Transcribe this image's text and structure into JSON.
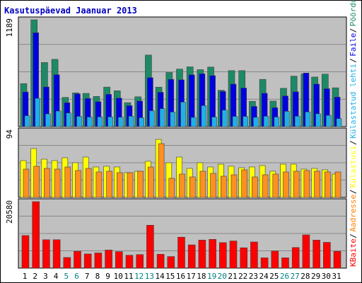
{
  "chart_data": {
    "type": "bar",
    "title": "Kasutuspäevad Jaanuar 2013",
    "categories": [
      "1",
      "2",
      "3",
      "4",
      "5",
      "6",
      "7",
      "8",
      "9",
      "10",
      "11",
      "12",
      "13",
      "14",
      "15",
      "16",
      "17",
      "18",
      "19",
      "20",
      "21",
      "22",
      "23",
      "24",
      "25",
      "26",
      "27",
      "28",
      "29",
      "30",
      "31"
    ],
    "weekend_days": [
      "5",
      "6",
      "12",
      "13",
      "19",
      "20",
      "26",
      "27"
    ],
    "colors": {
      "weekday_label": "#000000",
      "weekend_label": "#008080",
      "plot_bg": "#c0c0c0",
      "grid": "#888888"
    },
    "panels": [
      {
        "name": "top",
        "ymax_label": "1189",
        "ymax": 1189,
        "series": [
          {
            "name": "Pöördumisi",
            "color": "#1d8a66",
            "values": [
              479,
              1189,
              714,
              749,
              325,
              376,
              370,
              336,
              440,
              399,
              267,
              332,
              797,
              439,
              602,
              640,
              665,
              634,
              663,
              405,
              624,
              624,
              282,
              526,
              284,
              427,
              562,
              587,
              552,
              584,
              432
            ]
          },
          {
            "name": "Faile",
            "color": "#0000e0",
            "values": [
              386,
              1045,
              442,
              578,
              266,
              365,
              314,
              278,
              360,
              318,
              234,
              285,
              545,
              383,
              526,
              521,
              576,
              588,
              568,
              392,
              473,
              430,
              225,
              372,
              211,
              342,
              388,
              596,
              474,
              422,
              329
            ]
          },
          {
            "name": "Külastatud lehti",
            "color": "#20b0e8",
            "values": [
              121,
              315,
              142,
              173,
              152,
              114,
              106,
              108,
              108,
              105,
              116,
              99,
              176,
              200,
              162,
              273,
              102,
              234,
              106,
              184,
              113,
              113,
              103,
              116,
              107,
              170,
              116,
              164,
              143,
              125,
              90
            ]
          }
        ]
      },
      {
        "name": "middle",
        "ymax_label": "94",
        "ymax": 94,
        "series": [
          {
            "name": "Külastusi",
            "color": "#ffff00",
            "values": [
              52,
              69,
              54,
              52,
              56,
              49,
              57,
              43,
              44,
              43,
              35,
              37,
              51,
              82,
              49,
              57,
              41,
              49,
              43,
              47,
              44,
              42,
              43,
              45,
              37,
              47,
              47,
              40,
              41,
              39,
              33
            ]
          },
          {
            "name": "Aadresse",
            "color": "#ff9020",
            "values": [
              40,
              44,
              41,
              40,
              43,
              38,
              41,
              36,
              37,
              35,
              35,
              37,
              43,
              76,
              27,
              33,
              29,
              37,
              34,
              30,
              32,
              39,
              29,
              32,
              33,
              36,
              37,
              38,
              37,
              36,
              36
            ]
          }
        ]
      },
      {
        "name": "bottom",
        "ymax_label": "20580",
        "ymax": 20580,
        "series": [
          {
            "name": "KBaite",
            "color": "#ff0000",
            "values": [
              10100,
              20580,
              8800,
              8800,
              3300,
              5200,
              4400,
              4700,
              5600,
              5100,
              4000,
              4200,
              13300,
              4300,
              3600,
              9600,
              7200,
              8700,
              8900,
              7900,
              8400,
              6300,
              8100,
              3200,
              5300,
              3200,
              6400,
              10300,
              8700,
              8000,
              5200
            ]
          }
        ]
      }
    ],
    "right_labels": [
      {
        "text": "KBaite",
        "color": "#ff0000"
      },
      {
        "text": "Aadresse",
        "color": "#ff8000"
      },
      {
        "text": "Külastusi",
        "color": "#ffff00"
      },
      {
        "text": "Külastatud lehti",
        "color": "#20b0e8"
      },
      {
        "text": "Faile",
        "color": "#0000e0"
      },
      {
        "text": "Pöördumisi",
        "color": "#1d8a66"
      }
    ]
  }
}
